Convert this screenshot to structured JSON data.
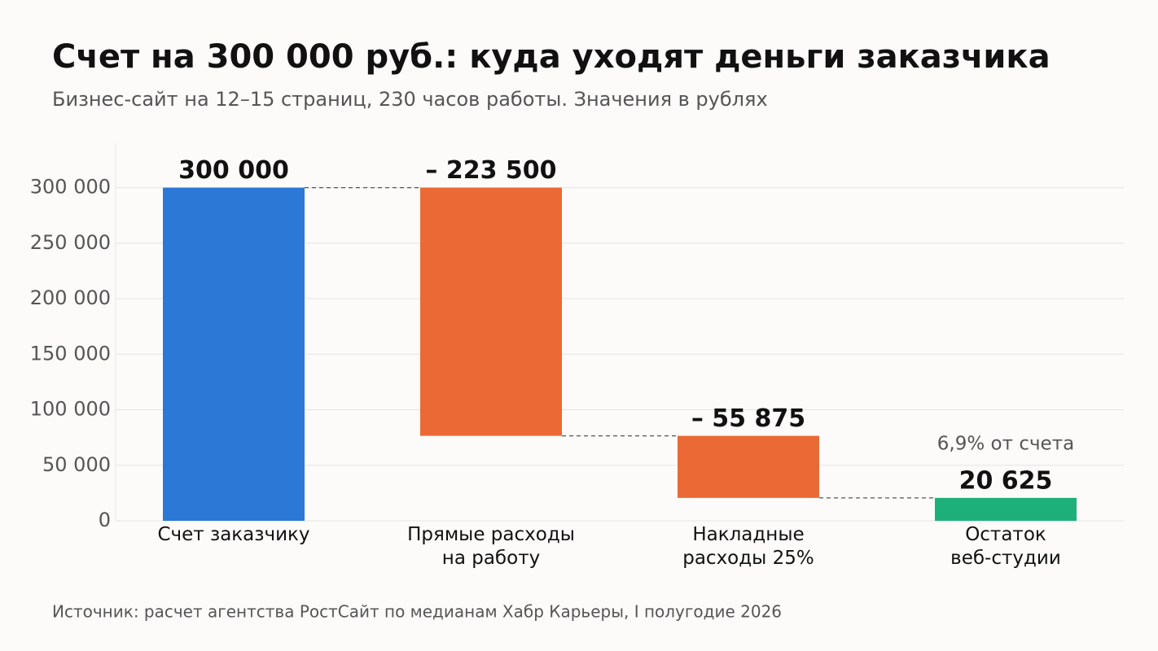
{
  "chart_data": {
    "type": "waterfall",
    "title": "Счет на 300 000 руб.: куда уходят деньги заказчика",
    "subtitle": "Бизнес-сайт на 12–15 страниц, 230 часов работы. Значения в рублях",
    "source": "Источник: расчет агентства РостСайт по медианам Хабр Карьеры, I полугодие 2026",
    "categories": [
      "Счет заказчику",
      "Прямые расходы\nна работу",
      "Накладные\nрасходы 25%",
      "Остаток\nвеб-студии"
    ],
    "values": [
      300000,
      -223500,
      -55875,
      20625
    ],
    "value_labels": [
      "300 000",
      "– 223 500",
      "– 55 875",
      "20 625"
    ],
    "measure": [
      "absolute",
      "relative",
      "relative",
      "total"
    ],
    "colors": [
      "#2b78d6",
      "#eb6935",
      "#eb6935",
      "#1db07a"
    ],
    "annotation": "6,9% от счета",
    "ylim": [
      0,
      340000
    ],
    "yticks": [
      0,
      {
        "value": 50000,
        "label": "50 000"
      },
      {
        "value": 100000,
        "label": "100 000"
      },
      {
        "value": 150000,
        "label": "150 000"
      },
      {
        "value": 200000,
        "label": "200 000"
      },
      {
        "value": 250000,
        "label": "250 000"
      },
      {
        "value": 300000,
        "label": "300 000"
      }
    ],
    "grid": true
  }
}
